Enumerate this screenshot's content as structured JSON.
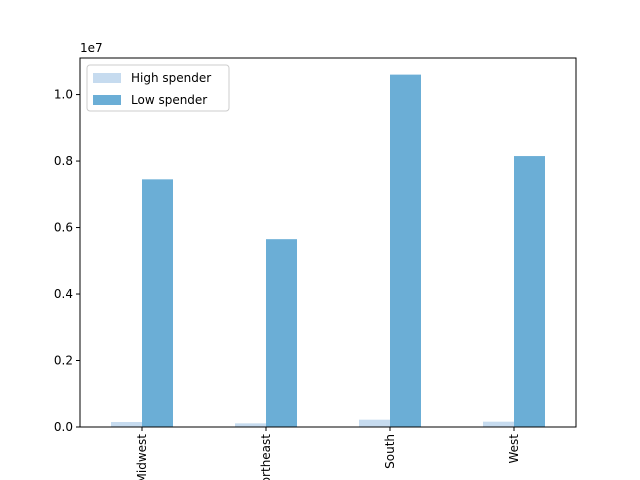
{
  "chart_data": {
    "type": "bar",
    "title": "",
    "xlabel": "",
    "ylabel": "",
    "categories": [
      "Midwest",
      "Northeast",
      "South",
      "West"
    ],
    "series": [
      {
        "name": "High spender",
        "color": "#c6dbef",
        "values": [
          150000,
          110000,
          220000,
          160000
        ]
      },
      {
        "name": "Low spender",
        "color": "#6baed6",
        "values": [
          7450000,
          5650000,
          10600000,
          8150000
        ]
      }
    ],
    "ylim": [
      0,
      11100000
    ],
    "yticks": [
      0,
      2000000,
      4000000,
      6000000,
      8000000,
      10000000
    ],
    "ytick_labels": [
      "0.0",
      "0.2",
      "0.4",
      "0.6",
      "0.8",
      "1.0"
    ],
    "offset_label": "1e7",
    "legend_position": "upper-left",
    "grid": false
  }
}
